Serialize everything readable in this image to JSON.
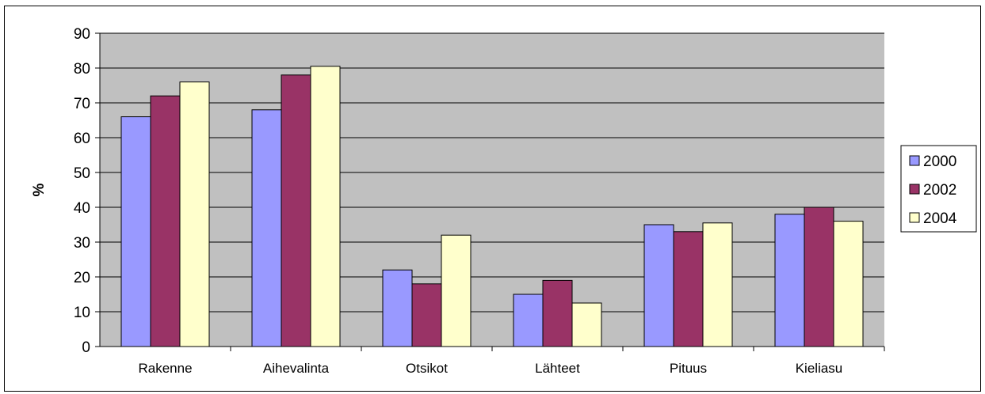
{
  "chart_data": {
    "type": "bar",
    "title": "",
    "xlabel": "",
    "ylabel": "%",
    "ylim": [
      0,
      90
    ],
    "yticks": [
      0,
      10,
      20,
      30,
      40,
      50,
      60,
      70,
      80,
      90
    ],
    "grid": true,
    "legend_position": "right",
    "plot_background": "#c0c0c0",
    "categories": [
      "Rakenne",
      "Aihevalinta",
      "Otsikot",
      "Lähteet",
      "Pituus",
      "Kieliasu"
    ],
    "series": [
      {
        "name": "2000",
        "color": "#9999ff",
        "values": [
          66,
          68,
          22,
          15,
          35,
          38
        ]
      },
      {
        "name": "2002",
        "color": "#993366",
        "values": [
          72,
          78,
          18,
          19,
          33,
          40
        ]
      },
      {
        "name": "2004",
        "color": "#ffffcc",
        "values": [
          76,
          80.5,
          32,
          12.5,
          35.5,
          36
        ]
      }
    ]
  }
}
